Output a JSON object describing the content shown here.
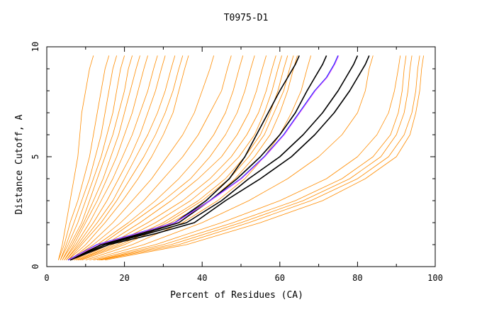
{
  "chart_data": {
    "type": "line",
    "title": "T0975-D1",
    "xlabel": "Percent of Residues (CA)",
    "ylabel": "Distance Cutoff, A",
    "xlim": [
      0,
      100
    ],
    "ylim": [
      0,
      10
    ],
    "x_ticks": [
      0,
      20,
      40,
      60,
      80,
      100
    ],
    "y_ticks": [
      0,
      5,
      10
    ],
    "grid": false,
    "legend": "none",
    "colors": {
      "bundle": "#ff8c00",
      "highlight": "#000000",
      "reference": "#3030ff",
      "reference_overlay": "#ff60ff"
    },
    "series": [
      {
        "color": "#ff8c00",
        "x": [
          3,
          4,
          5,
          6,
          7,
          8,
          8.5,
          9,
          10,
          11,
          12
        ],
        "y": [
          0.3,
          1,
          2,
          3,
          4,
          5,
          6,
          7,
          8,
          9,
          9.6
        ]
      },
      {
        "color": "#ff8c00",
        "x": [
          3,
          4.5,
          6,
          8,
          9.5,
          11,
          12,
          13,
          14,
          15,
          16
        ],
        "y": [
          0.3,
          1,
          2,
          3,
          4,
          5,
          6,
          7,
          8,
          9,
          9.6
        ]
      },
      {
        "color": "#ff8c00",
        "x": [
          3.5,
          5,
          7,
          9,
          11,
          12.5,
          14,
          15,
          16,
          17,
          18
        ],
        "y": [
          0.3,
          1,
          2,
          3,
          4,
          5,
          6,
          7,
          8,
          9,
          9.6
        ]
      },
      {
        "color": "#ff8c00",
        "x": [
          3.5,
          5.5,
          8,
          10,
          12,
          14,
          15.5,
          17,
          18,
          19,
          20
        ],
        "y": [
          0.3,
          1,
          2,
          3,
          4,
          5,
          6,
          7,
          8,
          9,
          9.6
        ]
      },
      {
        "color": "#ff8c00",
        "x": [
          4,
          6,
          9,
          11,
          13,
          15,
          17,
          18.5,
          20,
          21,
          22
        ],
        "y": [
          0.3,
          1,
          2,
          3,
          4,
          5,
          6,
          7,
          8,
          9,
          9.6
        ]
      },
      {
        "color": "#ff8c00",
        "x": [
          4,
          6.5,
          9.5,
          12,
          14.5,
          16.5,
          18.5,
          20,
          21.5,
          23,
          24
        ],
        "y": [
          0.3,
          1,
          2,
          3,
          4,
          5,
          6,
          7,
          8,
          9,
          9.6
        ]
      },
      {
        "color": "#ff8c00",
        "x": [
          4.5,
          7,
          10,
          13,
          15.5,
          18,
          20,
          22,
          23.5,
          25,
          26
        ],
        "y": [
          0.3,
          1,
          2,
          3,
          4,
          5,
          6,
          7,
          8,
          9,
          9.6
        ]
      },
      {
        "color": "#ff8c00",
        "x": [
          4.5,
          7.5,
          11,
          14,
          17,
          19.5,
          22,
          24,
          26,
          27.5,
          28.5
        ],
        "y": [
          0.3,
          1,
          2,
          3,
          4,
          5,
          6,
          7,
          8,
          9,
          9.6
        ]
      },
      {
        "color": "#ff8c00",
        "x": [
          5,
          8,
          12,
          15.5,
          18.5,
          21.5,
          24,
          26,
          28,
          29.5,
          30.5
        ],
        "y": [
          0.3,
          1,
          2,
          3,
          4,
          5,
          6,
          7,
          8,
          9,
          9.6
        ]
      },
      {
        "color": "#ff8c00",
        "x": [
          5,
          8.5,
          13,
          17,
          20,
          23,
          26,
          28.5,
          30.5,
          32,
          33
        ],
        "y": [
          0.3,
          1,
          2,
          3,
          4,
          5,
          6,
          7,
          8,
          9,
          9.6
        ]
      },
      {
        "color": "#ff8c00",
        "x": [
          5.5,
          9,
          14,
          18,
          21.5,
          25,
          28,
          30.5,
          32.5,
          34,
          35
        ],
        "y": [
          0.3,
          1,
          2,
          3,
          4,
          5,
          6,
          7,
          8,
          9,
          9.6
        ]
      },
      {
        "color": "#ff8c00",
        "x": [
          5.5,
          10,
          15,
          19.5,
          23.5,
          27,
          30,
          32.5,
          34,
          35.5,
          36.5
        ],
        "y": [
          0.3,
          1,
          2,
          3,
          4,
          5,
          6,
          7,
          8,
          9,
          9.6
        ]
      },
      {
        "color": "#ff8c00",
        "x": [
          6,
          11,
          17,
          22,
          27,
          31,
          35,
          38,
          40,
          42,
          43
        ],
        "y": [
          0.3,
          1,
          2,
          3,
          4,
          5,
          6,
          7,
          8,
          9,
          9.6
        ]
      },
      {
        "color": "#ff8c00",
        "x": [
          6,
          12,
          19,
          25,
          30,
          35,
          39,
          42,
          45,
          46.5,
          47.5
        ],
        "y": [
          0.3,
          1,
          2,
          3,
          4,
          5,
          6,
          7,
          8,
          9,
          9.6
        ]
      },
      {
        "color": "#ff8c00",
        "x": [
          6.5,
          13,
          21,
          28,
          34,
          39,
          43,
          46,
          48,
          49.5,
          50.5
        ],
        "y": [
          0.3,
          1,
          2,
          3,
          4,
          5,
          6,
          7,
          8,
          9,
          9.6
        ]
      },
      {
        "color": "#ff8c00",
        "x": [
          7,
          14,
          22,
          30,
          37,
          42,
          46,
          49,
          51,
          52.5,
          53.5
        ],
        "y": [
          0.3,
          1,
          2,
          3,
          4,
          5,
          6,
          7,
          8,
          9,
          9.6
        ]
      },
      {
        "color": "#ff8c00",
        "x": [
          7,
          15,
          24,
          32,
          39,
          45,
          49,
          52,
          54,
          55.5,
          56.5
        ],
        "y": [
          0.3,
          1,
          2,
          3,
          4,
          5,
          6,
          7,
          8,
          9,
          9.6
        ]
      },
      {
        "color": "#ff8c00",
        "x": [
          7.5,
          16,
          26,
          35,
          42,
          47.5,
          51.5,
          54.5,
          56.5,
          58,
          59
        ],
        "y": [
          0.3,
          1,
          2,
          3,
          4,
          5,
          6,
          7,
          8,
          9,
          9.6
        ]
      },
      {
        "color": "#ff8c00",
        "x": [
          8,
          17,
          28,
          37,
          44,
          49.5,
          53.5,
          56,
          58,
          59.5,
          60.5
        ],
        "y": [
          0.3,
          1,
          2,
          3,
          4,
          5,
          6,
          7,
          8,
          9,
          9.6
        ]
      },
      {
        "color": "#ff8c00",
        "x": [
          8,
          18,
          30,
          39,
          46,
          51,
          55,
          57.5,
          59.5,
          61,
          62
        ],
        "y": [
          0.3,
          1,
          2,
          3,
          4,
          5,
          6,
          7,
          8,
          9,
          9.6
        ]
      },
      {
        "color": "#ff8c00",
        "x": [
          8.5,
          19,
          31,
          40,
          47,
          52,
          56,
          58.5,
          61,
          62.5,
          63.5
        ],
        "y": [
          0.3,
          1,
          2,
          3,
          4,
          5,
          6,
          7,
          8,
          9,
          9.6
        ]
      },
      {
        "color": "#ff8c00",
        "x": [
          9,
          20,
          32,
          42,
          48.5,
          53.5,
          57.5,
          60,
          62,
          63.5,
          64.5
        ],
        "y": [
          0.3,
          1,
          2,
          3,
          4,
          5,
          6,
          7,
          8,
          9,
          9.6
        ]
      },
      {
        "color": "#ff8c00",
        "x": [
          10,
          22,
          35,
          44,
          51,
          56,
          60,
          63,
          65.5,
          67,
          68
        ],
        "y": [
          0.3,
          1,
          2,
          3,
          4,
          5,
          6,
          7,
          8,
          9,
          9.6
        ]
      },
      {
        "color": "#ff8c00",
        "x": [
          11,
          25,
          40,
          52,
          62,
          70,
          76,
          80,
          82,
          83,
          84
        ],
        "y": [
          0.3,
          1,
          2,
          3,
          4,
          5,
          6,
          7,
          8,
          9,
          9.6
        ]
      },
      {
        "color": "#ff8c00",
        "x": [
          12,
          28,
          45,
          60,
          72,
          80,
          85,
          88,
          89.5,
          90.5,
          91
        ],
        "y": [
          0.3,
          1,
          2,
          3,
          4,
          5,
          6,
          7,
          8,
          9,
          9.6
        ]
      },
      {
        "color": "#ff8c00",
        "x": [
          13,
          30,
          48,
          64,
          76,
          84,
          88.5,
          90.5,
          91.5,
          92,
          92.5
        ],
        "y": [
          0.3,
          1,
          2,
          3,
          4,
          5,
          6,
          7,
          8,
          9,
          9.6
        ]
      },
      {
        "color": "#ff8c00",
        "x": [
          13.5,
          32,
          50,
          66,
          78,
          86,
          90,
          92,
          93,
          93.5,
          94
        ],
        "y": [
          0.3,
          1,
          2,
          3,
          4,
          5,
          6,
          7,
          8,
          9,
          9.6
        ]
      },
      {
        "color": "#ff8c00",
        "x": [
          14,
          34,
          52,
          68,
          80,
          88,
          92,
          94,
          95,
          95.5,
          96
        ],
        "y": [
          0.3,
          1,
          2,
          3,
          4,
          5,
          6,
          7,
          8,
          9,
          9.6
        ]
      },
      {
        "color": "#ff8c00",
        "x": [
          15,
          36,
          55,
          71,
          82,
          90,
          93.5,
          95,
          96,
          96.5,
          97
        ],
        "y": [
          0.3,
          1,
          2,
          3,
          4,
          5,
          6,
          7,
          8,
          9,
          9.6
        ]
      },
      {
        "color": "#000000",
        "x": [
          6,
          14,
          24,
          33,
          41,
          47,
          51,
          54,
          57,
          60,
          62,
          64,
          65
        ],
        "y": [
          0.3,
          1,
          1.5,
          2,
          3,
          4,
          5,
          6,
          7,
          8,
          8.6,
          9.2,
          9.6
        ]
      },
      {
        "color": "#000000",
        "x": [
          6,
          14,
          25,
          34,
          42,
          49,
          55,
          60,
          64,
          67,
          69,
          71,
          72
        ],
        "y": [
          0.3,
          1,
          1.5,
          2,
          3,
          4,
          5,
          6,
          7,
          8,
          8.6,
          9.2,
          9.6
        ]
      },
      {
        "color": "#000000",
        "x": [
          6,
          15,
          26,
          36,
          45,
          52,
          60,
          66,
          71,
          75,
          77,
          79,
          80
        ],
        "y": [
          0.3,
          1,
          1.5,
          2,
          3,
          4,
          5,
          6,
          7,
          8,
          8.6,
          9.2,
          9.6
        ]
      },
      {
        "color": "#000000",
        "x": [
          6,
          16,
          28,
          38,
          46,
          55,
          63,
          69,
          74,
          78,
          80,
          82,
          83
        ],
        "y": [
          0.3,
          1,
          1.5,
          2,
          3,
          4,
          5,
          6,
          7,
          8,
          8.6,
          9.2,
          9.6
        ]
      },
      {
        "color": "#3030ff",
        "x": [
          5.5,
          13,
          23,
          33,
          42,
          50,
          56,
          61,
          65,
          69,
          72,
          74,
          75
        ],
        "y": [
          0.3,
          1,
          1.5,
          2,
          3,
          4,
          5,
          6,
          7,
          8,
          8.6,
          9.2,
          9.6
        ]
      }
    ]
  }
}
